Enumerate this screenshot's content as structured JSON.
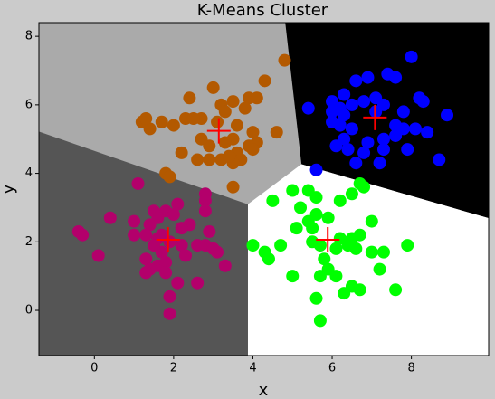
{
  "chart_data": {
    "type": "scatter",
    "title": "K-Means Cluster",
    "x_label": "x",
    "y_label": "y",
    "xlim": [
      -1.4,
      9.95
    ],
    "ylim": [
      -1.32,
      8.4
    ],
    "xticks": [
      0,
      2,
      4,
      6,
      8
    ],
    "yticks": [
      0,
      2,
      4,
      6,
      8
    ],
    "centroid_color": "#ff0000",
    "clusters": [
      {
        "color": "#b35900",
        "region_color": "#aaaaaa",
        "centroid": {
          "x": 3.14,
          "y": 5.24
        },
        "x": [
          2.7,
          2.0,
          1.4,
          1.2,
          1.3,
          1.7,
          2.3,
          2.5,
          2.4,
          3.0,
          3.2,
          3.5,
          3.9,
          4.1,
          3.3,
          3.8,
          3.1,
          3.6,
          4.0,
          3.5,
          3.3,
          2.9,
          3.6,
          3.7,
          3.5,
          3.2,
          2.6,
          2.9,
          2.2,
          2.7,
          4.1,
          3.9,
          4.6,
          4.3,
          4.8,
          3.5,
          1.8,
          1.9,
          4.0,
          3.4
        ],
        "y": [
          5.6,
          5.4,
          5.3,
          5.5,
          5.6,
          5.5,
          5.6,
          5.6,
          6.2,
          6.5,
          6.0,
          6.1,
          6.2,
          6.2,
          5.8,
          5.9,
          5.5,
          5.4,
          5.2,
          5.0,
          4.9,
          4.8,
          4.6,
          4.4,
          4.3,
          4.4,
          4.4,
          4.4,
          4.6,
          5.0,
          4.9,
          4.8,
          5.2,
          6.7,
          7.3,
          3.6,
          4.0,
          3.9,
          4.7,
          4.5
        ]
      },
      {
        "color": "#0000ff",
        "region_color": "#000000",
        "centroid": {
          "x": 7.08,
          "y": 5.63
        },
        "x": [
          5.4,
          6.0,
          6.3,
          6.6,
          6.9,
          7.4,
          7.6,
          8.0,
          6.0,
          6.2,
          6.5,
          6.8,
          7.1,
          7.3,
          7.8,
          8.2,
          8.3,
          8.9,
          8.4,
          8.1,
          7.6,
          7.3,
          6.9,
          6.5,
          6.2,
          6.0,
          6.3,
          6.1,
          6.4,
          6.8,
          7.3,
          7.2,
          6.6,
          5.6,
          7.9,
          8.7,
          7.6,
          6.3,
          7.1,
          7.8
        ],
        "y": [
          5.9,
          6.1,
          6.3,
          6.7,
          6.8,
          6.9,
          6.8,
          7.4,
          5.8,
          5.9,
          6.0,
          6.1,
          6.2,
          6.0,
          5.8,
          6.2,
          6.1,
          5.7,
          5.2,
          5.3,
          5.1,
          5.0,
          4.9,
          5.3,
          5.4,
          5.5,
          5.0,
          4.8,
          4.7,
          4.6,
          4.7,
          4.3,
          4.3,
          4.1,
          4.7,
          4.4,
          5.4,
          5.7,
          5.8,
          5.3
        ]
      },
      {
        "color": "#00ff00",
        "region_color": "#ffffff",
        "centroid": {
          "x": 5.89,
          "y": 2.06
        },
        "x": [
          4.5,
          5.0,
          5.4,
          5.6,
          6.2,
          6.5,
          6.8,
          6.7,
          5.2,
          5.9,
          5.6,
          5.4,
          5.1,
          5.5,
          6.2,
          6.5,
          7.0,
          6.7,
          6.4,
          6.6,
          6.1,
          5.7,
          5.5,
          5.8,
          4.0,
          4.3,
          4.4,
          4.7,
          5.0,
          5.7,
          5.9,
          6.1,
          6.5,
          6.7,
          6.3,
          5.6,
          5.7,
          7.0,
          7.2,
          7.6,
          7.9,
          7.3
        ],
        "y": [
          3.2,
          3.5,
          3.5,
          3.3,
          3.2,
          3.4,
          3.6,
          3.7,
          3.0,
          2.7,
          2.8,
          2.6,
          2.4,
          2.4,
          2.1,
          2.1,
          2.6,
          2.2,
          1.9,
          1.8,
          1.8,
          1.9,
          2.0,
          1.5,
          1.9,
          1.7,
          1.5,
          1.9,
          1.0,
          1.0,
          1.2,
          1.0,
          0.7,
          0.6,
          0.5,
          0.35,
          -0.3,
          1.7,
          1.2,
          0.6,
          1.9,
          1.7
        ]
      },
      {
        "color": "#b3006b",
        "region_color": "#555555",
        "centroid": {
          "x": 1.86,
          "y": 2.06
        },
        "x": [
          1.1,
          1.8,
          1.5,
          1.6,
          2.0,
          2.1,
          2.4,
          2.8,
          2.8,
          2.8,
          0.4,
          -0.4,
          -0.3,
          0.1,
          1.0,
          1.0,
          1.4,
          1.3,
          1.6,
          1.9,
          2.2,
          2.2,
          1.7,
          1.5,
          1.3,
          1.6,
          1.4,
          1.8,
          1.8,
          2.3,
          2.6,
          2.8,
          2.9,
          3.0,
          3.1,
          3.3,
          2.1,
          1.9,
          1.9,
          2.6,
          1.3,
          1.7
        ],
        "y": [
          3.7,
          2.9,
          2.9,
          2.7,
          2.8,
          3.1,
          2.5,
          3.4,
          3.2,
          2.9,
          2.7,
          2.3,
          2.2,
          1.6,
          2.6,
          2.2,
          2.5,
          2.2,
          2.1,
          2.0,
          2.4,
          1.9,
          1.7,
          1.9,
          1.5,
          1.3,
          1.2,
          1.4,
          1.1,
          1.6,
          1.9,
          1.9,
          2.3,
          1.8,
          1.7,
          1.3,
          0.8,
          0.4,
          -0.1,
          0.8,
          1.1,
          2.2
        ]
      }
    ]
  }
}
